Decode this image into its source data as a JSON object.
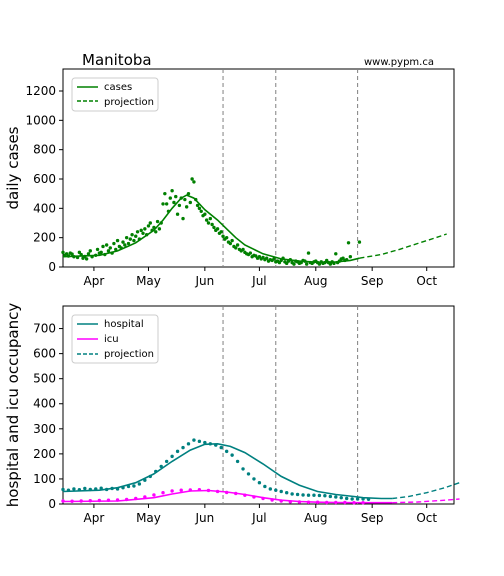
{
  "header": {
    "region": "Manitoba",
    "site": "www.pypm.ca"
  },
  "colors": {
    "cases": "#008000",
    "hospital": "#008080",
    "icu": "#ff00ff",
    "vline": "#808080",
    "frame": "#000000"
  },
  "chart_data": [
    {
      "type": "line",
      "ylabel": "daily cases",
      "x_ticks": [
        "Apr",
        "May",
        "Jun",
        "Jul",
        "Aug",
        "Sep",
        "Oct"
      ],
      "x_range_days": [
        0,
        215
      ],
      "ylim": [
        0,
        1350
      ],
      "y_ticks": [
        0,
        200,
        400,
        600,
        800,
        1000,
        1200
      ],
      "vlines_day": [
        88,
        117,
        162
      ],
      "legend": [
        "cases",
        "projection"
      ],
      "model_curve": [
        [
          0,
          70
        ],
        [
          20,
          80
        ],
        [
          30,
          110
        ],
        [
          40,
          165
        ],
        [
          50,
          250
        ],
        [
          55,
          320
        ],
        [
          60,
          400
        ],
        [
          65,
          470
        ],
        [
          68,
          490
        ],
        [
          72,
          470
        ],
        [
          78,
          390
        ],
        [
          85,
          320
        ],
        [
          90,
          260
        ],
        [
          95,
          200
        ],
        [
          100,
          150
        ],
        [
          110,
          90
        ],
        [
          120,
          55
        ],
        [
          130,
          40
        ],
        [
          140,
          32
        ],
        [
          150,
          35
        ],
        [
          158,
          45
        ],
        [
          163,
          60
        ]
      ],
      "projection": [
        [
          163,
          60
        ],
        [
          175,
          85
        ],
        [
          185,
          120
        ],
        [
          195,
          160
        ],
        [
          205,
          200
        ],
        [
          211,
          225
        ]
      ],
      "observed": [
        [
          0,
          100
        ],
        [
          1,
          80
        ],
        [
          2,
          90
        ],
        [
          3,
          75
        ],
        [
          4,
          95
        ],
        [
          5,
          88
        ],
        [
          6,
          70
        ],
        [
          8,
          65
        ],
        [
          9,
          100
        ],
        [
          10,
          85
        ],
        [
          11,
          60
        ],
        [
          12,
          72
        ],
        [
          13,
          55
        ],
        [
          14,
          90
        ],
        [
          15,
          110
        ],
        [
          16,
          70
        ],
        [
          18,
          80
        ],
        [
          19,
          120
        ],
        [
          20,
          95
        ],
        [
          21,
          100
        ],
        [
          22,
          140
        ],
        [
          23,
          85
        ],
        [
          24,
          150
        ],
        [
          25,
          110
        ],
        [
          26,
          130
        ],
        [
          27,
          95
        ],
        [
          28,
          160
        ],
        [
          29,
          120
        ],
        [
          30,
          180
        ],
        [
          31,
          140
        ],
        [
          32,
          130
        ],
        [
          33,
          170
        ],
        [
          34,
          150
        ],
        [
          35,
          200
        ],
        [
          36,
          160
        ],
        [
          37,
          190
        ],
        [
          38,
          220
        ],
        [
          39,
          180
        ],
        [
          40,
          210
        ],
        [
          41,
          240
        ],
        [
          42,
          190
        ],
        [
          43,
          250
        ],
        [
          44,
          230
        ],
        [
          45,
          260
        ],
        [
          46,
          220
        ],
        [
          47,
          280
        ],
        [
          48,
          300
        ],
        [
          49,
          250
        ],
        [
          50,
          270
        ],
        [
          51,
          240
        ],
        [
          52,
          310
        ],
        [
          53,
          260
        ],
        [
          54,
          300
        ],
        [
          55,
          430
        ],
        [
          56,
          500
        ],
        [
          57,
          430
        ],
        [
          58,
          380
        ],
        [
          59,
          470
        ],
        [
          60,
          520
        ],
        [
          61,
          440
        ],
        [
          62,
          480
        ],
        [
          63,
          360
        ],
        [
          64,
          420
        ],
        [
          65,
          470
        ],
        [
          66,
          330
        ],
        [
          67,
          460
        ],
        [
          68,
          410
        ],
        [
          69,
          500
        ],
        [
          70,
          440
        ],
        [
          71,
          600
        ],
        [
          72,
          580
        ],
        [
          73,
          460
        ],
        [
          74,
          420
        ],
        [
          75,
          400
        ],
        [
          76,
          380
        ],
        [
          77,
          350
        ],
        [
          78,
          360
        ],
        [
          79,
          320
        ],
        [
          80,
          300
        ],
        [
          81,
          330
        ],
        [
          82,
          290
        ],
        [
          83,
          270
        ],
        [
          84,
          250
        ],
        [
          85,
          260
        ],
        [
          86,
          230
        ],
        [
          87,
          240
        ],
        [
          88,
          210
        ],
        [
          89,
          190
        ],
        [
          90,
          200
        ],
        [
          91,
          170
        ],
        [
          92,
          160
        ],
        [
          93,
          180
        ],
        [
          94,
          140
        ],
        [
          95,
          130
        ],
        [
          96,
          150
        ],
        [
          97,
          120
        ],
        [
          98,
          110
        ],
        [
          99,
          120
        ],
        [
          100,
          100
        ],
        [
          101,
          90
        ],
        [
          102,
          85
        ],
        [
          103,
          95
        ],
        [
          104,
          70
        ],
        [
          105,
          80
        ],
        [
          106,
          75
        ],
        [
          107,
          60
        ],
        [
          108,
          70
        ],
        [
          109,
          55
        ],
        [
          110,
          65
        ],
        [
          111,
          50
        ],
        [
          112,
          60
        ],
        [
          113,
          40
        ],
        [
          114,
          50
        ],
        [
          115,
          45
        ],
        [
          116,
          55
        ],
        [
          117,
          35
        ],
        [
          118,
          40
        ],
        [
          119,
          30
        ],
        [
          120,
          45
        ],
        [
          121,
          60
        ],
        [
          122,
          35
        ],
        [
          123,
          25
        ],
        [
          124,
          40
        ],
        [
          125,
          50
        ],
        [
          126,
          30
        ],
        [
          127,
          20
        ],
        [
          128,
          40
        ],
        [
          129,
          35
        ],
        [
          130,
          25
        ],
        [
          131,
          30
        ],
        [
          132,
          45
        ],
        [
          133,
          40
        ],
        [
          134,
          20
        ],
        [
          135,
          95
        ],
        [
          136,
          30
        ],
        [
          137,
          25
        ],
        [
          138,
          35
        ],
        [
          139,
          40
        ],
        [
          140,
          30
        ],
        [
          141,
          20
        ],
        [
          142,
          35
        ],
        [
          143,
          25
        ],
        [
          144,
          30
        ],
        [
          145,
          45
        ],
        [
          146,
          30
        ],
        [
          147,
          20
        ],
        [
          148,
          35
        ],
        [
          149,
          25
        ],
        [
          150,
          90
        ],
        [
          151,
          30
        ],
        [
          152,
          40
        ],
        [
          153,
          55
        ],
        [
          154,
          60
        ],
        [
          155,
          45
        ],
        [
          156,
          50
        ],
        [
          157,
          165
        ],
        [
          158,
          70
        ],
        [
          163,
          170
        ]
      ]
    },
    {
      "type": "line",
      "ylabel": "hospital and icu occupancy",
      "x_ticks": [
        "Apr",
        "May",
        "Jun",
        "Jul",
        "Aug",
        "Sep",
        "Oct"
      ],
      "x_range_days": [
        0,
        215
      ],
      "ylim": [
        0,
        790
      ],
      "y_ticks": [
        0,
        100,
        200,
        300,
        400,
        500,
        600,
        700
      ],
      "vlines_day": [
        88,
        117,
        162
      ],
      "legend": [
        "hospital",
        "icu",
        "projection"
      ],
      "series": [
        {
          "name": "hospital",
          "model": [
            [
              0,
              50
            ],
            [
              20,
              55
            ],
            [
              30,
              65
            ],
            [
              40,
              85
            ],
            [
              50,
              120
            ],
            [
              60,
              170
            ],
            [
              70,
              215
            ],
            [
              78,
              238
            ],
            [
              85,
              240
            ],
            [
              92,
              230
            ],
            [
              100,
              205
            ],
            [
              110,
              160
            ],
            [
              120,
              110
            ],
            [
              130,
              75
            ],
            [
              140,
              50
            ],
            [
              150,
              38
            ],
            [
              160,
              30
            ],
            [
              165,
              25
            ],
            [
              175,
              22
            ],
            [
              181,
              22
            ]
          ],
          "projection": [
            [
              181,
              22
            ],
            [
              190,
              30
            ],
            [
              200,
              45
            ],
            [
              210,
              65
            ],
            [
              218,
              85
            ]
          ],
          "observed": [
            [
              0,
              58
            ],
            [
              3,
              55
            ],
            [
              6,
              60
            ],
            [
              9,
              57
            ],
            [
              12,
              62
            ],
            [
              15,
              58
            ],
            [
              18,
              60
            ],
            [
              21,
              63
            ],
            [
              24,
              58
            ],
            [
              27,
              62
            ],
            [
              30,
              60
            ],
            [
              33,
              65
            ],
            [
              36,
              70
            ],
            [
              39,
              72
            ],
            [
              42,
              80
            ],
            [
              45,
              95
            ],
            [
              48,
              110
            ],
            [
              51,
              130
            ],
            [
              54,
              150
            ],
            [
              57,
              170
            ],
            [
              60,
              190
            ],
            [
              63,
              210
            ],
            [
              66,
              225
            ],
            [
              69,
              240
            ],
            [
              72,
              255
            ],
            [
              75,
              250
            ],
            [
              78,
              245
            ],
            [
              81,
              240
            ],
            [
              84,
              235
            ],
            [
              87,
              225
            ],
            [
              90,
              210
            ],
            [
              93,
              195
            ],
            [
              96,
              170
            ],
            [
              99,
              140
            ],
            [
              102,
              120
            ],
            [
              105,
              100
            ],
            [
              108,
              85
            ],
            [
              111,
              70
            ],
            [
              114,
              60
            ],
            [
              117,
              55
            ],
            [
              120,
              50
            ],
            [
              123,
              45
            ],
            [
              126,
              40
            ],
            [
              129,
              38
            ],
            [
              132,
              36
            ],
            [
              135,
              35
            ],
            [
              138,
              35
            ],
            [
              141,
              34
            ],
            [
              144,
              33
            ],
            [
              147,
              30
            ],
            [
              150,
              28
            ],
            [
              153,
              25
            ],
            [
              156,
              22
            ],
            [
              159,
              20
            ],
            [
              162,
              20
            ],
            [
              165,
              20
            ],
            [
              168,
              19
            ]
          ]
        },
        {
          "name": "icu",
          "model": [
            [
              0,
              10
            ],
            [
              30,
              12
            ],
            [
              50,
              25
            ],
            [
              60,
              40
            ],
            [
              70,
              52
            ],
            [
              80,
              54
            ],
            [
              90,
              48
            ],
            [
              100,
              38
            ],
            [
              110,
              25
            ],
            [
              120,
              15
            ],
            [
              130,
              10
            ],
            [
              140,
              7
            ],
            [
              150,
              6
            ],
            [
              160,
              5
            ],
            [
              170,
              5
            ],
            [
              181,
              5
            ]
          ],
          "projection": [
            [
              181,
              5
            ],
            [
              195,
              8
            ],
            [
              210,
              15
            ],
            [
              218,
              20
            ]
          ],
          "observed": [
            [
              0,
              12
            ],
            [
              5,
              11
            ],
            [
              10,
              12
            ],
            [
              15,
              13
            ],
            [
              20,
              14
            ],
            [
              25,
              15
            ],
            [
              30,
              16
            ],
            [
              35,
              18
            ],
            [
              40,
              22
            ],
            [
              45,
              28
            ],
            [
              50,
              36
            ],
            [
              55,
              45
            ],
            [
              60,
              52
            ],
            [
              65,
              55
            ],
            [
              70,
              56
            ],
            [
              75,
              57
            ],
            [
              80,
              54
            ],
            [
              85,
              50
            ],
            [
              90,
              46
            ],
            [
              95,
              42
            ],
            [
              100,
              35
            ],
            [
              105,
              28
            ],
            [
              110,
              22
            ],
            [
              115,
              16
            ],
            [
              120,
              12
            ],
            [
              125,
              9
            ],
            [
              130,
              8
            ],
            [
              135,
              7
            ],
            [
              140,
              7
            ],
            [
              145,
              6
            ],
            [
              150,
              6
            ],
            [
              155,
              6
            ],
            [
              160,
              5
            ],
            [
              165,
              5
            ]
          ]
        }
      ]
    }
  ]
}
